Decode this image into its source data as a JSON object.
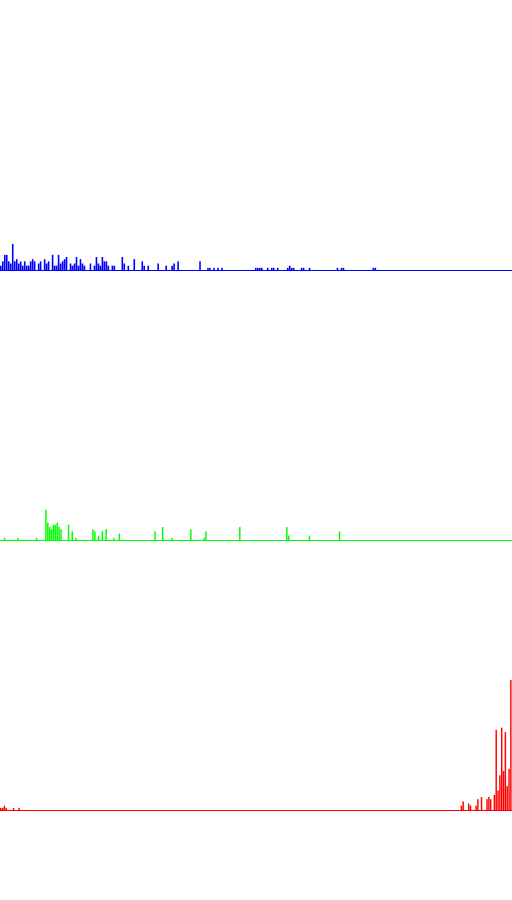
{
  "chart_data": [
    {
      "type": "bar",
      "channel": "blue",
      "color": "#0000ff",
      "x_range": [
        0,
        255
      ],
      "values": [
        4,
        8,
        14,
        14,
        8,
        6,
        24,
        8,
        10,
        6,
        8,
        4,
        8,
        4,
        4,
        8,
        10,
        8,
        0,
        6,
        8,
        0,
        10,
        6,
        8,
        0,
        14,
        4,
        4,
        14,
        6,
        8,
        10,
        12,
        0,
        6,
        4,
        6,
        12,
        4,
        10,
        6,
        4,
        0,
        0,
        6,
        0,
        4,
        12,
        6,
        4,
        12,
        8,
        8,
        4,
        0,
        4,
        4,
        0,
        0,
        0,
        12,
        6,
        0,
        4,
        0,
        0,
        10,
        0,
        0,
        0,
        8,
        4,
        0,
        4,
        0,
        0,
        0,
        0,
        6,
        0,
        0,
        0,
        4,
        0,
        0,
        4,
        6,
        0,
        8,
        0,
        0,
        0,
        0,
        0,
        0,
        0,
        0,
        0,
        0,
        8,
        0,
        0,
        0,
        2,
        2,
        0,
        2,
        0,
        2,
        0,
        2,
        0,
        0,
        0,
        0,
        0,
        0,
        0,
        0,
        0,
        0,
        0,
        0,
        0,
        0,
        0,
        0,
        2,
        2,
        2,
        2,
        0,
        0,
        2,
        0,
        2,
        2,
        0,
        2,
        0,
        0,
        0,
        0,
        2,
        4,
        2,
        2,
        0,
        0,
        0,
        2,
        2,
        0,
        0,
        2,
        0,
        0,
        0,
        0,
        0,
        0,
        0,
        0,
        0,
        0,
        0,
        0,
        0,
        2,
        0,
        2,
        2,
        0,
        0,
        0,
        0,
        0,
        0,
        0,
        0,
        0,
        0,
        0,
        0,
        0,
        0,
        2,
        2,
        0,
        0,
        0,
        0,
        0,
        0,
        0,
        0,
        0,
        0,
        0,
        0,
        0,
        0,
        0,
        0,
        0,
        0,
        0,
        0,
        0,
        0,
        0,
        0,
        0,
        0,
        0,
        0,
        0,
        0,
        0,
        0,
        0,
        0,
        0,
        0,
        0,
        0,
        0,
        0,
        0,
        0,
        0,
        0,
        0,
        0,
        0,
        0,
        0,
        0,
        0,
        0,
        0,
        0,
        0,
        0,
        0,
        0,
        0,
        0,
        0,
        0,
        0,
        0,
        0,
        0,
        0,
        0
      ]
    },
    {
      "type": "bar",
      "channel": "green",
      "color": "#00ff00",
      "x_range": [
        0,
        255
      ],
      "values": [
        0,
        0,
        2,
        0,
        0,
        0,
        0,
        0,
        0,
        2,
        0,
        0,
        0,
        0,
        0,
        0,
        0,
        0,
        0,
        2,
        0,
        0,
        0,
        0,
        28,
        16,
        12,
        10,
        14,
        14,
        16,
        12,
        10,
        0,
        0,
        0,
        14,
        0,
        8,
        0,
        2,
        0,
        0,
        0,
        0,
        0,
        0,
        0,
        0,
        10,
        8,
        0,
        4,
        0,
        8,
        0,
        10,
        0,
        0,
        0,
        2,
        0,
        0,
        6,
        0,
        0,
        0,
        0,
        0,
        0,
        0,
        0,
        0,
        0,
        0,
        0,
        0,
        0,
        0,
        0,
        0,
        0,
        8,
        0,
        0,
        0,
        12,
        0,
        0,
        0,
        0,
        2,
        0,
        0,
        0,
        0,
        0,
        0,
        0,
        0,
        0,
        10,
        0,
        0,
        0,
        0,
        0,
        0,
        2,
        8,
        0,
        0,
        0,
        0,
        0,
        0,
        0,
        0,
        0,
        0,
        0,
        0,
        0,
        0,
        0,
        0,
        0,
        12,
        0,
        0,
        0,
        0,
        0,
        0,
        0,
        0,
        0,
        0,
        0,
        0,
        0,
        0,
        0,
        0,
        0,
        0,
        0,
        0,
        0,
        0,
        0,
        0,
        12,
        4,
        0,
        0,
        0,
        0,
        0,
        0,
        0,
        0,
        0,
        0,
        4,
        0,
        0,
        0,
        0,
        0,
        0,
        0,
        0,
        0,
        0,
        0,
        0,
        0,
        0,
        0,
        8,
        0,
        0,
        0,
        0,
        0,
        0,
        0,
        0,
        0,
        0,
        0,
        0,
        0,
        0,
        0,
        0,
        0,
        0,
        0,
        0,
        0,
        0,
        0,
        0,
        0,
        0,
        0,
        0,
        0,
        0,
        0,
        0,
        0,
        0,
        0,
        0,
        0,
        0,
        0,
        0,
        0,
        0,
        0,
        0,
        0,
        0,
        0,
        0,
        0,
        0,
        0,
        0,
        0,
        0,
        0,
        0,
        0,
        0,
        0,
        0,
        0,
        0,
        0,
        0,
        0,
        0,
        0,
        0,
        0,
        0,
        0,
        0,
        0,
        0,
        0,
        0,
        0,
        0,
        0,
        0,
        0,
        0,
        0,
        0,
        0,
        0,
        0,
        0,
        0,
        0,
        0
      ]
    },
    {
      "type": "bar",
      "channel": "red",
      "color": "#ff0000",
      "x_range": [
        0,
        255
      ],
      "values": [
        2,
        2,
        4,
        2,
        0,
        0,
        0,
        2,
        0,
        0,
        2,
        0,
        0,
        0,
        0,
        0,
        0,
        0,
        0,
        0,
        0,
        0,
        0,
        0,
        0,
        0,
        0,
        0,
        0,
        0,
        0,
        0,
        0,
        0,
        0,
        0,
        0,
        0,
        0,
        0,
        0,
        0,
        0,
        0,
        0,
        0,
        0,
        0,
        0,
        0,
        0,
        0,
        0,
        0,
        0,
        0,
        0,
        0,
        0,
        0,
        0,
        0,
        0,
        0,
        0,
        0,
        0,
        0,
        0,
        0,
        0,
        0,
        0,
        0,
        0,
        0,
        0,
        0,
        0,
        0,
        0,
        0,
        0,
        0,
        0,
        0,
        0,
        0,
        0,
        0,
        0,
        0,
        0,
        0,
        0,
        0,
        0,
        0,
        0,
        0,
        0,
        0,
        0,
        0,
        0,
        0,
        0,
        0,
        0,
        0,
        0,
        0,
        0,
        0,
        0,
        0,
        0,
        0,
        0,
        0,
        0,
        0,
        0,
        0,
        0,
        0,
        0,
        0,
        0,
        0,
        0,
        0,
        0,
        0,
        0,
        0,
        0,
        0,
        0,
        0,
        0,
        0,
        0,
        0,
        0,
        0,
        0,
        0,
        0,
        0,
        0,
        0,
        0,
        0,
        0,
        0,
        0,
        0,
        0,
        0,
        0,
        0,
        0,
        0,
        0,
        0,
        0,
        0,
        0,
        0,
        0,
        0,
        0,
        0,
        0,
        0,
        0,
        0,
        0,
        0,
        0,
        0,
        0,
        0,
        0,
        0,
        0,
        0,
        0,
        0,
        0,
        0,
        0,
        0,
        0,
        0,
        0,
        0,
        0,
        0,
        0,
        0,
        0,
        0,
        0,
        0,
        0,
        0,
        0,
        0,
        0,
        0,
        0,
        0,
        0,
        0,
        0,
        0,
        0,
        0,
        0,
        0,
        0,
        0,
        0,
        0,
        0,
        0,
        0,
        0,
        0,
        0,
        0,
        0,
        0,
        0,
        0,
        0,
        0,
        0,
        0,
        0,
        0,
        0,
        0,
        0,
        0,
        0,
        0,
        0,
        0,
        4,
        8,
        0,
        0,
        6,
        4,
        0,
        0,
        4,
        10,
        0,
        12,
        0,
        0,
        10,
        12,
        10,
        0,
        14,
        74,
        18,
        32,
        76,
        36,
        72,
        22,
        38,
        120
      ]
    }
  ]
}
